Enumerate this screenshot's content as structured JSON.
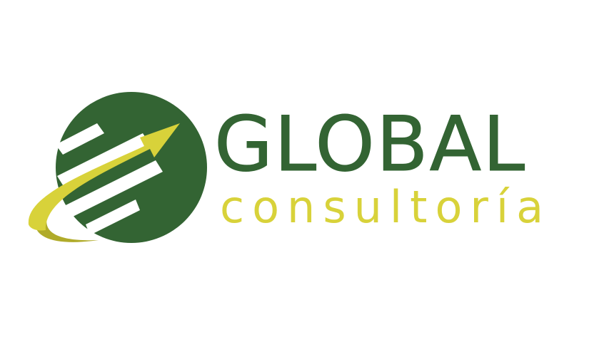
{
  "logo": {
    "name": "GLOBAL",
    "tagline": "consultoría",
    "icon": "globe-growth-arrow-icon",
    "colors": {
      "primary_green": "#336433",
      "accent_yellow": "#d8d23a",
      "accent_yellow_shadow": "#b0ab2a",
      "background": "#ffffff"
    }
  }
}
